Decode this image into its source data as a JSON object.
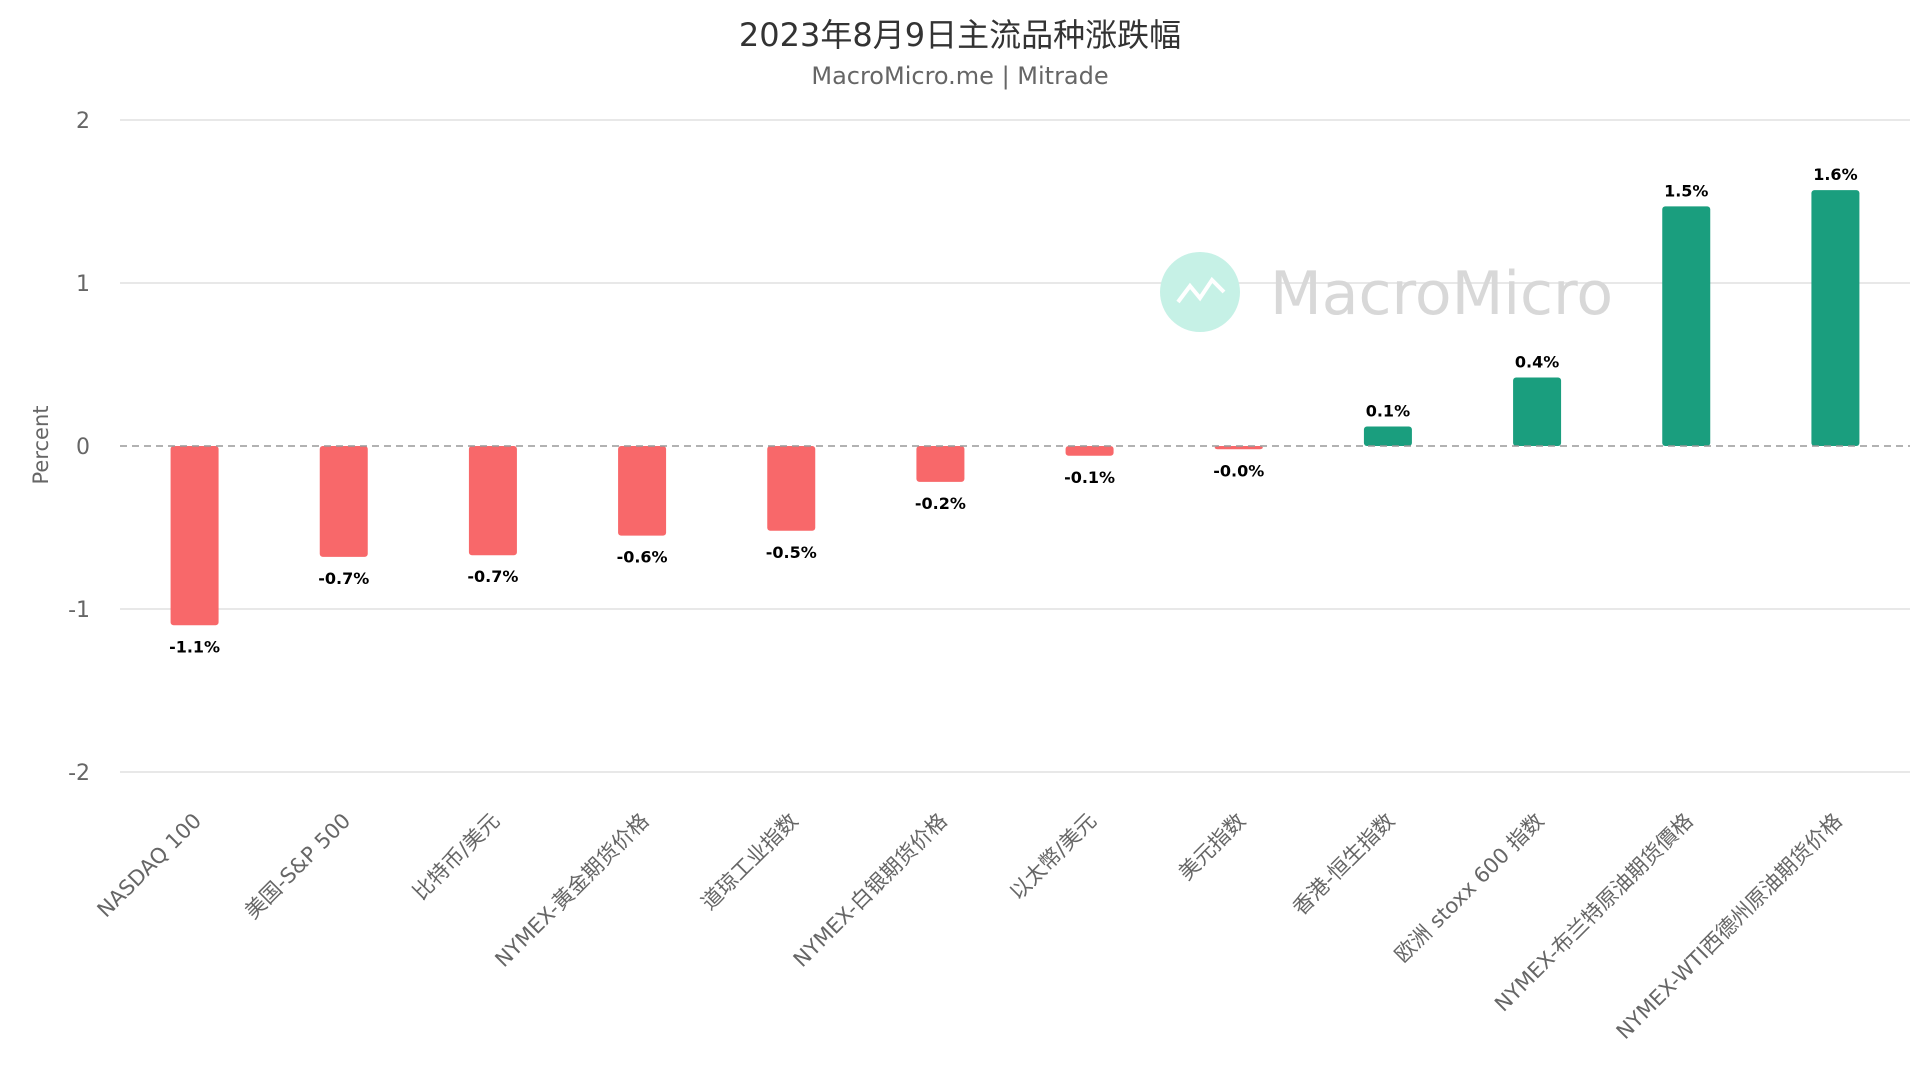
{
  "chart_data": {
    "type": "bar",
    "title": "2023年8月9日主流品种涨跌幅",
    "subtitle": "MacroMicro.me | Mitrade",
    "ylabel": "Percent",
    "ylim": [
      -2,
      2
    ],
    "yticks": [
      2,
      1,
      0,
      -1,
      -2
    ],
    "grid": true,
    "categories": [
      "NASDAQ 100",
      "美国-S&P 500",
      "比特币/美元",
      "NYMEX-黃金期货价格",
      "道琼工业指数",
      "NYMEX-白银期货价格",
      "以太幣/美元",
      "美元指数",
      "香港-恒生指数",
      "欧洲 stoxx 600 指数",
      "NYMEX-布兰特原油期货價格",
      "NYMEX-WTI西德州原油期货价格"
    ],
    "values": [
      -1.1,
      -0.68,
      -0.67,
      -0.55,
      -0.52,
      -0.22,
      -0.06,
      -0.02,
      0.12,
      0.42,
      1.47,
      1.57
    ],
    "data_labels": [
      "-1.1%",
      "-0.7%",
      "-0.7%",
      "-0.6%",
      "-0.5%",
      "-0.2%",
      "-0.1%",
      "-0.0%",
      "0.1%",
      "0.4%",
      "1.5%",
      "1.6%"
    ],
    "colors": {
      "positive": "#1a9e7e",
      "negative": "#f8686a",
      "zero_line": "#999999",
      "grid": "#e0e0e0"
    }
  },
  "watermark": {
    "text": "MacroMicro",
    "icon": "line-chart-icon"
  }
}
